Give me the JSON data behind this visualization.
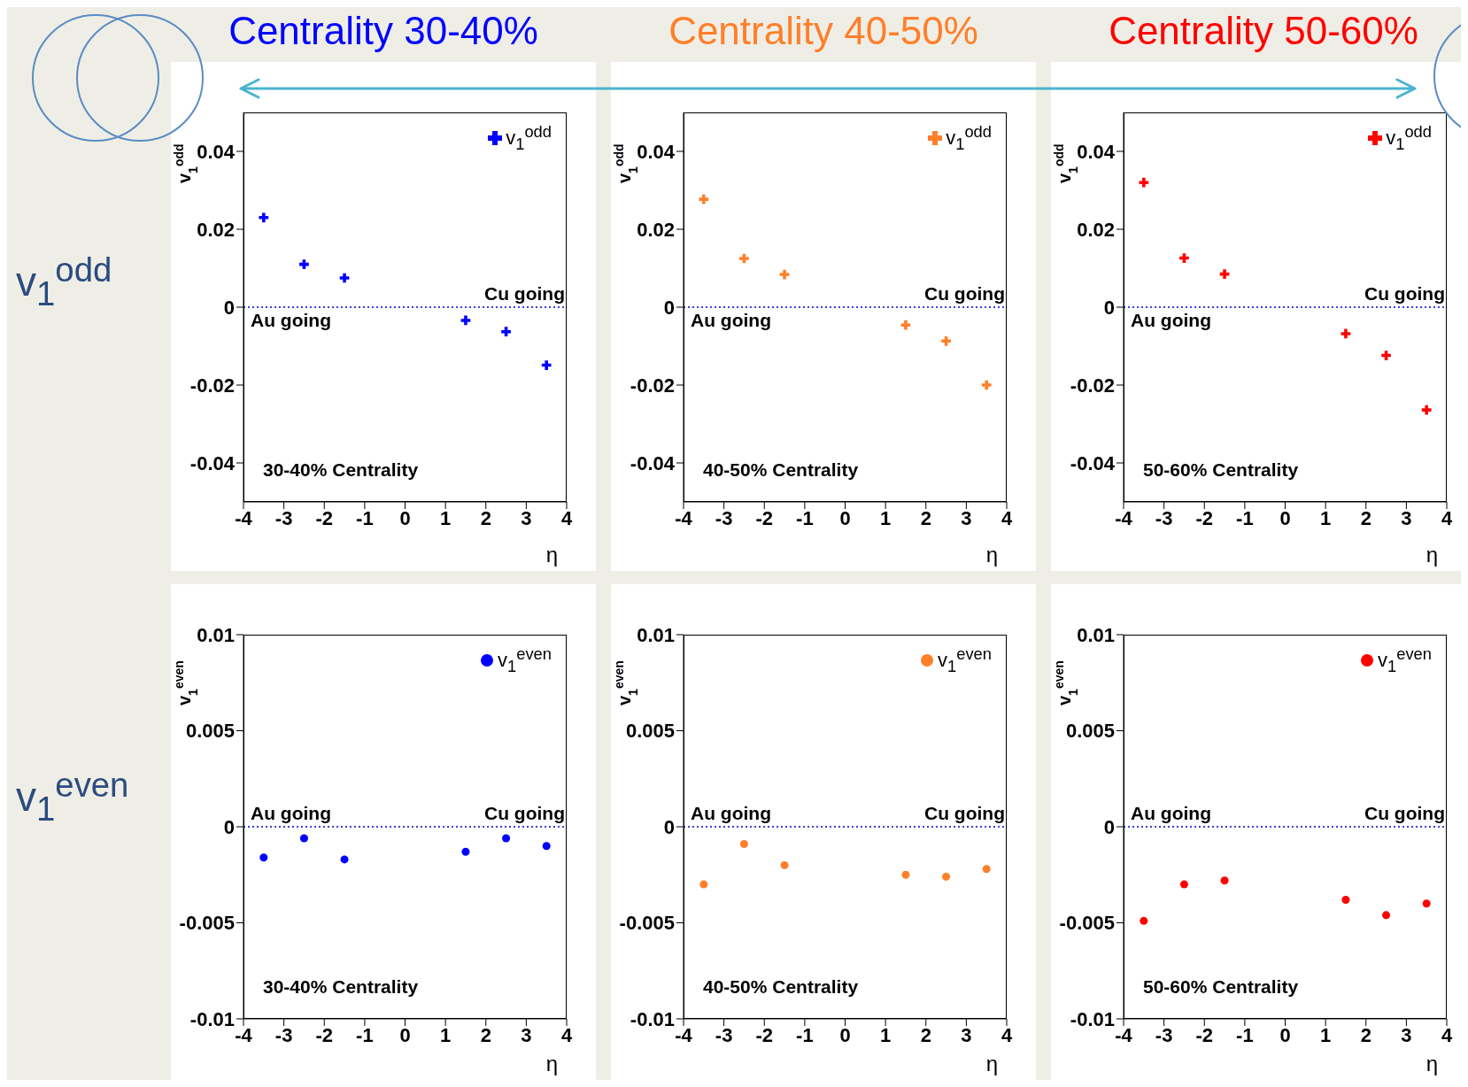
{
  "chart_data": [
    {
      "type": "scatter",
      "title": "Centrality 30-40%",
      "xlabel": "η",
      "ylabel": "v$_{1}$$^{odd}$",
      "marker": "cross",
      "legend": "top right",
      "x": [
        -3.5,
        -2.5,
        -1.5,
        1.5,
        2.5,
        3.5
      ],
      "xlim": [
        -4,
        4
      ],
      "xticks": [
        -4,
        -3,
        -2,
        -1,
        0,
        1,
        2,
        3,
        4
      ],
      "ylim": [
        -0.05,
        0.05
      ],
      "yticks": [
        -0.04,
        -0.02,
        0,
        0.02,
        0.04
      ],
      "ref_lines": [
        {
          "axis": "y",
          "value": 0,
          "color": "#0000cc",
          "line_style": "dotted"
        }
      ],
      "series": [
        {
          "name": "v$_{1}$$^{odd}$",
          "color": "#0000ff",
          "values": [
            0.023,
            0.011,
            0.0075,
            -0.0034,
            -0.0063,
            -0.0149
          ]
        }
      ],
      "annotations": [
        "v$_{1}$$^{odd}$",
        "Au going",
        "Cu going",
        "30-40% Centrality"
      ]
    },
    {
      "type": "scatter",
      "title": "Centrality 40-50%",
      "xlabel": "η",
      "ylabel": "v$_{1}$$^{odd}$",
      "marker": "cross",
      "legend": "top right",
      "x": [
        -3.5,
        -2.5,
        -1.5,
        1.5,
        2.5,
        3.5
      ],
      "xlim": [
        -4,
        4
      ],
      "xticks": [
        -4,
        -3,
        -2,
        -1,
        0,
        1,
        2,
        3,
        4
      ],
      "ylim": [
        -0.05,
        0.05
      ],
      "yticks": [
        -0.04,
        -0.02,
        0,
        0.02,
        0.04
      ],
      "ref_lines": [
        {
          "axis": "y",
          "value": 0,
          "color": "#0000cc",
          "line_style": "dotted"
        }
      ],
      "series": [
        {
          "name": "v$_{1}$$^{odd}$",
          "color": "#ff7f2a",
          "values": [
            0.0277,
            0.0125,
            0.0084,
            -0.0046,
            -0.0087,
            -0.02
          ]
        }
      ],
      "annotations": [
        "Au going",
        "Cu going",
        "40-50% Centrality"
      ]
    },
    {
      "type": "scatter",
      "title": "Centrality 50-60%",
      "xlabel": "η",
      "ylabel": "v$_{1}$$^{odd}$",
      "marker": "cross",
      "legend": "top right",
      "x": [
        -3.5,
        -2.5,
        -1.5,
        1.5,
        2.5,
        3.5
      ],
      "xlim": [
        -4,
        4
      ],
      "xticks": [
        -4,
        -3,
        -2,
        -1,
        0,
        1,
        2,
        3,
        4
      ],
      "ylim": [
        -0.05,
        0.05
      ],
      "yticks": [
        -0.04,
        -0.02,
        0,
        0.02,
        0.04
      ],
      "ref_lines": [
        {
          "axis": "y",
          "value": 0,
          "color": "#0000cc",
          "line_style": "dotted"
        }
      ],
      "series": [
        {
          "name": "v$_{1}$$^{odd}$",
          "color": "#ff0000",
          "values": [
            0.032,
            0.0126,
            0.0085,
            -0.0068,
            -0.0124,
            -0.0264
          ]
        }
      ],
      "annotations": [
        "Au going",
        "Cu going",
        "50-60% Centrality"
      ]
    },
    {
      "type": "scatter",
      "xlabel": "η",
      "ylabel": "v$_{1}$$^{even}$",
      "marker": "circle",
      "legend": "top right",
      "x": [
        -3.5,
        -2.5,
        -1.5,
        1.5,
        2.5,
        3.5
      ],
      "xlim": [
        -4,
        4
      ],
      "xticks": [
        -4,
        -3,
        -2,
        -1,
        0,
        1,
        2,
        3,
        4
      ],
      "ylim": [
        -0.01,
        0.01
      ],
      "yticks": [
        -0.01,
        -0.005,
        0,
        0.005,
        0.01
      ],
      "ref_lines": [
        {
          "axis": "y",
          "value": 0,
          "color": "#0000cc",
          "line_style": "dotted"
        }
      ],
      "series": [
        {
          "name": "v$_{1}$$^{even}$",
          "color": "#0000ff",
          "values": [
            -0.0016,
            -0.0006,
            -0.0017,
            -0.0013,
            -0.0006,
            -0.001
          ]
        }
      ],
      "annotations": [
        "v$_{1}$$^{even}$",
        "Au going",
        "Cu going",
        "30-40% Centrality"
      ]
    },
    {
      "type": "scatter",
      "xlabel": "η",
      "ylabel": "v$_{1}$$^{even}$",
      "marker": "circle",
      "legend": "top right",
      "x": [
        -3.5,
        -2.5,
        -1.5,
        1.5,
        2.5,
        3.5
      ],
      "xlim": [
        -4,
        4
      ],
      "xticks": [
        -4,
        -3,
        -2,
        -1,
        0,
        1,
        2,
        3,
        4
      ],
      "ylim": [
        -0.01,
        0.01
      ],
      "yticks": [
        -0.01,
        -0.005,
        0,
        0.005,
        0.01
      ],
      "ref_lines": [
        {
          "axis": "y",
          "value": 0,
          "color": "#0000cc",
          "line_style": "dotted"
        }
      ],
      "series": [
        {
          "name": "v$_{1}$$^{even}$",
          "color": "#ff7f2a",
          "values": [
            -0.003,
            -0.0009,
            -0.002,
            -0.0025,
            -0.0026,
            -0.0022
          ]
        }
      ],
      "annotations": [
        "Au going",
        "Cu going",
        "40-50% Centrality"
      ]
    },
    {
      "type": "scatter",
      "xlabel": "η",
      "ylabel": "v$_{1}$$^{even}$",
      "marker": "circle",
      "legend": "top right",
      "x": [
        -3.5,
        -2.5,
        -1.5,
        1.5,
        2.5,
        3.5
      ],
      "xlim": [
        -4,
        4
      ],
      "xticks": [
        -4,
        -3,
        -2,
        -1,
        0,
        1,
        2,
        3,
        4
      ],
      "ylim": [
        -0.01,
        0.01
      ],
      "yticks": [
        -0.01,
        -0.005,
        0,
        0.005,
        0.01
      ],
      "ref_lines": [
        {
          "axis": "y",
          "value": 0,
          "color": "#0000cc",
          "line_style": "dotted"
        }
      ],
      "series": [
        {
          "name": "v$_{1}$$^{even}$",
          "color": "#ff0000",
          "values": [
            -0.0049,
            -0.003,
            -0.0028,
            -0.0038,
            -0.0046,
            -0.004
          ]
        }
      ],
      "annotations": [
        "Au going",
        "Cu going",
        "50-60% Centrality"
      ]
    }
  ]
}
